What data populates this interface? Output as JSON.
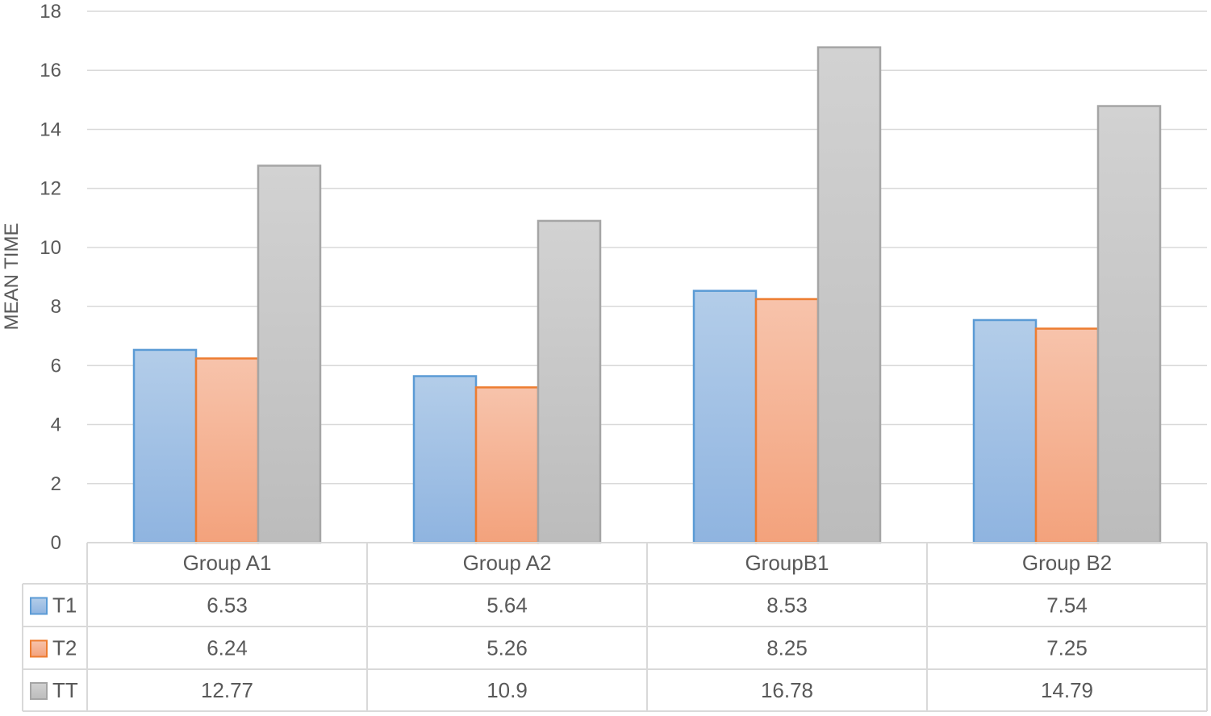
{
  "chart_data": {
    "type": "bar",
    "title": "",
    "xlabel": "",
    "ylabel": "MEAN TIME",
    "ylim": [
      0,
      18
    ],
    "yticks": [
      0,
      2,
      4,
      6,
      8,
      10,
      12,
      14,
      16,
      18
    ],
    "grid": true,
    "legend": "data table below plot",
    "categories": [
      "Group A1",
      "Group A2",
      "GroupB1",
      "Group B2"
    ],
    "series": [
      {
        "name": "T1",
        "values": [
          6.53,
          5.64,
          8.53,
          7.54
        ],
        "color": "#5b9bd5"
      },
      {
        "name": "T2",
        "values": [
          6.24,
          5.26,
          8.25,
          7.25
        ],
        "color": "#ed7d31"
      },
      {
        "name": "TT",
        "values": [
          12.77,
          10.9,
          16.78,
          14.79
        ],
        "color": "#a5a5a5"
      }
    ],
    "table_values": [
      [
        "6.53",
        "5.64",
        "8.53",
        "7.54"
      ],
      [
        "6.24",
        "5.26",
        "8.25",
        "7.25"
      ],
      [
        "12.77",
        "10.9",
        "16.78",
        "14.79"
      ]
    ]
  }
}
